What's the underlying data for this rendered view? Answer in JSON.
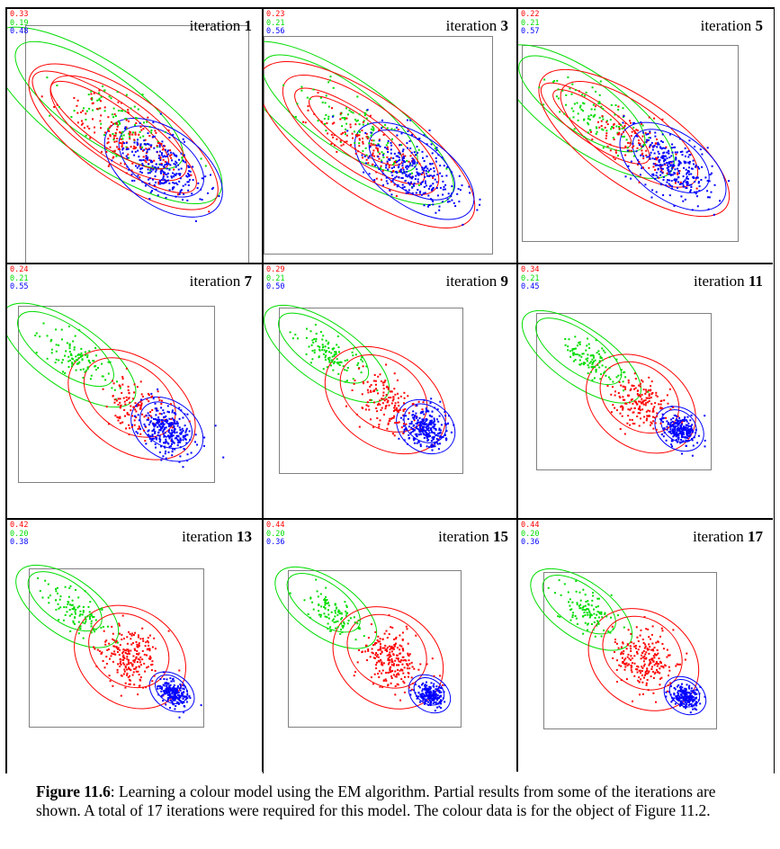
{
  "colors": {
    "red": "#ff0000",
    "green": "#00dd00",
    "blue": "#0000ff",
    "frame": "#000000",
    "plotbox": "#808080"
  },
  "panels": [
    {
      "label": "iteration",
      "number": "1",
      "weights": [
        "0.33",
        "0.19",
        "0.48"
      ]
    },
    {
      "label": "iteration",
      "number": "3",
      "weights": [
        "0.23",
        "0.21",
        "0.56"
      ]
    },
    {
      "label": "iteration",
      "number": "5",
      "weights": [
        "0.22",
        "0.21",
        "0.57"
      ]
    },
    {
      "label": "iteration",
      "number": "7",
      "weights": [
        "0.24",
        "0.21",
        "0.55"
      ]
    },
    {
      "label": "iteration",
      "number": "9",
      "weights": [
        "0.29",
        "0.21",
        "0.50"
      ]
    },
    {
      "label": "iteration",
      "number": "11",
      "weights": [
        "0.34",
        "0.21",
        "0.45"
      ]
    },
    {
      "label": "iteration",
      "number": "13",
      "weights": [
        "0.42",
        "0.20",
        "0.38"
      ]
    },
    {
      "label": "iteration",
      "number": "15",
      "weights": [
        "0.44",
        "0.20",
        "0.36"
      ]
    },
    {
      "label": "iteration",
      "number": "17",
      "weights": [
        "0.44",
        "0.20",
        "0.36"
      ]
    }
  ],
  "caption": {
    "label": "Figure 11.6",
    "text": ":   Learning a colour model using the EM algorithm. Partial results from some of the iterations are shown. A total of 17 iterations were required for this model. The colour data is for the object of Figure 11.2."
  }
}
